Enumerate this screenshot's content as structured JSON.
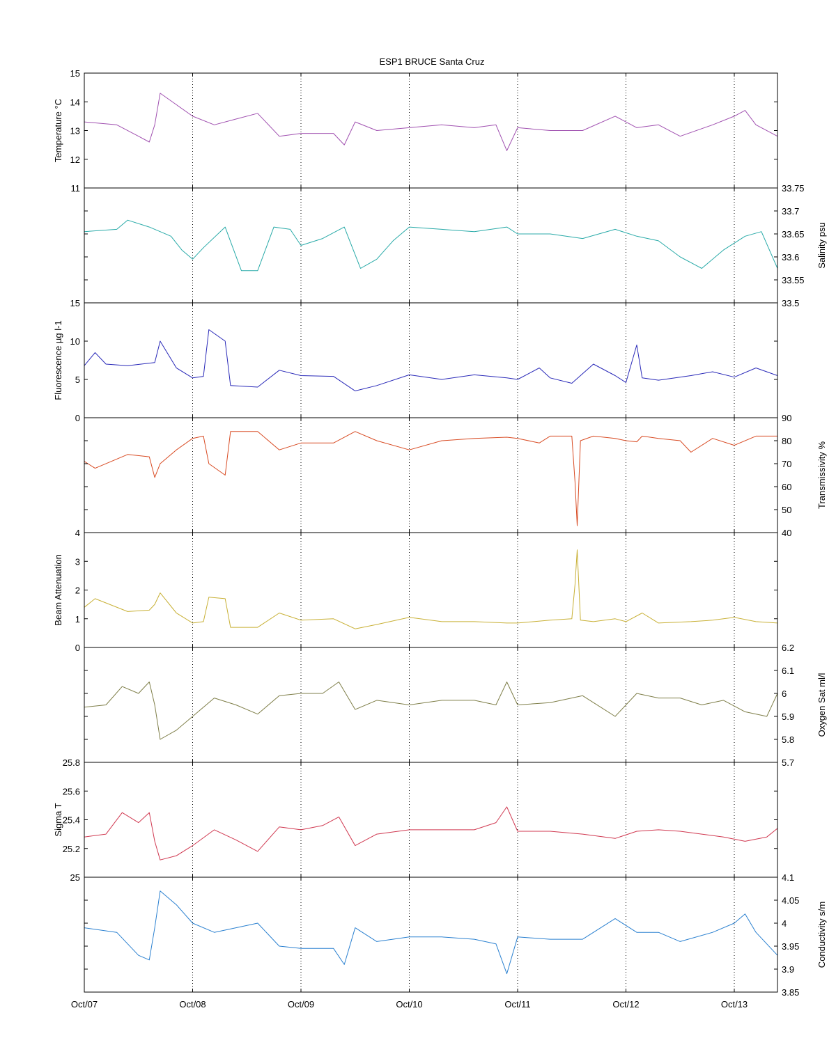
{
  "chart_data": {
    "type": "line",
    "title": "ESP1 BRUCE Santa Cruz",
    "x_tick_labels": [
      "Oct/07",
      "Oct/08",
      "Oct/09",
      "Oct/10",
      "Oct/11",
      "Oct/12",
      "Oct/13"
    ],
    "xlim_days": [
      7,
      13.4
    ],
    "grid": "vertical dotted lines at daily ticks",
    "panels": [
      {
        "name": "temperature",
        "ylabel": "Temperature °C",
        "side": "left",
        "color": "#a050b0",
        "ylim": [
          11,
          15
        ],
        "y_ticks": [
          "11",
          "12",
          "13",
          "14",
          "15"
        ],
        "series": {
          "x": [
            7.0,
            7.3,
            7.5,
            7.6,
            7.65,
            7.7,
            7.85,
            8.0,
            8.2,
            8.4,
            8.6,
            8.8,
            9.0,
            9.3,
            9.4,
            9.5,
            9.7,
            10.0,
            10.3,
            10.6,
            10.8,
            10.9,
            11.0,
            11.3,
            11.6,
            11.9,
            12.1,
            12.3,
            12.5,
            12.8,
            13.0,
            13.1,
            13.2,
            13.4
          ],
          "y": [
            13.3,
            13.2,
            12.8,
            12.6,
            13.2,
            14.3,
            13.9,
            13.5,
            13.2,
            13.4,
            13.6,
            12.8,
            12.9,
            12.9,
            12.5,
            13.3,
            13.0,
            13.1,
            13.2,
            13.1,
            13.2,
            12.3,
            13.1,
            13.0,
            13.0,
            13.5,
            13.1,
            13.2,
            12.8,
            13.2,
            13.5,
            13.7,
            13.2,
            12.8
          ]
        }
      },
      {
        "name": "salinity",
        "ylabel": "Salinity psu",
        "side": "right",
        "color": "#28aaa8",
        "ylim": [
          33.5,
          33.75
        ],
        "y_ticks": [
          "33.5",
          "33.55",
          "33.6",
          "33.65",
          "33.7",
          "33.75"
        ],
        "series": {
          "x": [
            7.0,
            7.3,
            7.4,
            7.6,
            7.8,
            7.9,
            8.0,
            8.1,
            8.3,
            8.45,
            8.6,
            8.75,
            8.9,
            9.0,
            9.2,
            9.4,
            9.55,
            9.7,
            9.85,
            10.0,
            10.3,
            10.6,
            10.9,
            11.0,
            11.3,
            11.6,
            11.9,
            12.1,
            12.3,
            12.5,
            12.7,
            12.9,
            13.1,
            13.25,
            13.4
          ],
          "y": [
            33.655,
            33.66,
            33.68,
            33.665,
            33.645,
            33.615,
            33.595,
            33.62,
            33.665,
            33.57,
            33.57,
            33.665,
            33.66,
            33.625,
            33.64,
            33.665,
            33.575,
            33.595,
            33.635,
            33.665,
            33.66,
            33.655,
            33.665,
            33.65,
            33.65,
            33.64,
            33.66,
            33.645,
            33.635,
            33.6,
            33.575,
            33.615,
            33.645,
            33.655,
            33.575
          ]
        }
      },
      {
        "name": "fluorescence",
        "ylabel": "Fluorescence µg l-1",
        "side": "left",
        "color": "#2828b8",
        "ylim": [
          0,
          15
        ],
        "y_ticks": [
          "0",
          "5",
          "10",
          "15"
        ],
        "series": {
          "x": [
            7.0,
            7.1,
            7.2,
            7.4,
            7.65,
            7.7,
            7.85,
            8.0,
            8.1,
            8.15,
            8.3,
            8.35,
            8.6,
            8.8,
            9.0,
            9.3,
            9.5,
            9.7,
            10.0,
            10.3,
            10.6,
            10.9,
            11.0,
            11.2,
            11.3,
            11.5,
            11.7,
            11.9,
            12.0,
            12.1,
            12.15,
            12.3,
            12.6,
            12.8,
            13.0,
            13.2,
            13.4
          ],
          "y": [
            6.8,
            8.5,
            7.0,
            6.8,
            7.2,
            10.0,
            6.5,
            5.2,
            5.4,
            11.5,
            10.0,
            4.2,
            4.0,
            6.2,
            5.5,
            5.4,
            3.5,
            4.2,
            5.6,
            5.0,
            5.6,
            5.2,
            5.0,
            6.5,
            5.2,
            4.5,
            7.0,
            5.5,
            4.6,
            9.5,
            5.2,
            4.9,
            5.5,
            6.0,
            5.3,
            6.5,
            5.5
          ]
        }
      },
      {
        "name": "transmissivity",
        "ylabel": "Transmissivity %",
        "side": "right",
        "color": "#d84a22",
        "ylim": [
          40,
          90
        ],
        "y_ticks": [
          "40",
          "50",
          "60",
          "70",
          "80",
          "90"
        ],
        "series": {
          "x": [
            7.0,
            7.1,
            7.4,
            7.6,
            7.65,
            7.7,
            7.85,
            8.0,
            8.1,
            8.15,
            8.3,
            8.35,
            8.6,
            8.8,
            9.0,
            9.3,
            9.5,
            9.7,
            10.0,
            10.3,
            10.6,
            10.9,
            11.0,
            11.2,
            11.3,
            11.5,
            11.53,
            11.55,
            11.58,
            11.7,
            11.9,
            12.0,
            12.1,
            12.15,
            12.3,
            12.5,
            12.6,
            12.8,
            13.0,
            13.2,
            13.4
          ],
          "y": [
            71.0,
            68.0,
            74.0,
            73.0,
            64.0,
            70.0,
            76.0,
            81.0,
            82.0,
            70.0,
            65.0,
            84.0,
            84.0,
            76.0,
            79.0,
            79.0,
            84.0,
            80.0,
            76.0,
            80.0,
            81.0,
            81.5,
            81.0,
            79.0,
            82.0,
            82.0,
            62.0,
            43.0,
            80.0,
            82.0,
            81.0,
            80.0,
            79.5,
            82.0,
            81.0,
            80.0,
            75.0,
            81.0,
            78.0,
            82.0,
            82.0
          ]
        }
      },
      {
        "name": "beam-attenuation",
        "ylabel": "Beam Attenuation",
        "side": "left",
        "color": "#c8b035",
        "ylim": [
          0,
          4
        ],
        "y_ticks": [
          "0",
          "1",
          "2",
          "3",
          "4"
        ],
        "series": {
          "x": [
            7.0,
            7.1,
            7.4,
            7.6,
            7.65,
            7.7,
            7.85,
            8.0,
            8.1,
            8.15,
            8.3,
            8.35,
            8.6,
            8.8,
            9.0,
            9.3,
            9.5,
            9.7,
            10.0,
            10.3,
            10.6,
            10.9,
            11.0,
            11.3,
            11.5,
            11.53,
            11.55,
            11.58,
            11.7,
            11.9,
            12.0,
            12.15,
            12.3,
            12.6,
            12.8,
            13.0,
            13.2,
            13.4
          ],
          "y": [
            1.4,
            1.7,
            1.25,
            1.3,
            1.5,
            1.9,
            1.2,
            0.85,
            0.9,
            1.75,
            1.7,
            0.7,
            0.7,
            1.2,
            0.95,
            1.0,
            0.65,
            0.8,
            1.05,
            0.9,
            0.9,
            0.85,
            0.85,
            0.95,
            1.0,
            2.2,
            3.4,
            0.95,
            0.9,
            1.0,
            0.9,
            1.2,
            0.85,
            0.9,
            0.95,
            1.05,
            0.9,
            0.85
          ]
        }
      },
      {
        "name": "oxygen-sat",
        "ylabel": "Oxygen Sat ml/l",
        "side": "right",
        "color": "#7e7e48",
        "ylim": [
          5.7,
          6.2
        ],
        "y_ticks": [
          "5.7",
          "5.8",
          "5.9",
          "6",
          "6.1",
          "6.2"
        ],
        "series": {
          "x": [
            7.0,
            7.2,
            7.35,
            7.5,
            7.6,
            7.65,
            7.7,
            7.85,
            8.0,
            8.2,
            8.4,
            8.6,
            8.8,
            9.0,
            9.2,
            9.35,
            9.5,
            9.7,
            10.0,
            10.3,
            10.6,
            10.8,
            10.9,
            11.0,
            11.3,
            11.6,
            11.9,
            12.1,
            12.3,
            12.5,
            12.7,
            12.9,
            13.1,
            13.3,
            13.4
          ],
          "y": [
            5.94,
            5.95,
            6.03,
            6.0,
            6.05,
            5.95,
            5.8,
            5.84,
            5.9,
            5.98,
            5.95,
            5.91,
            5.99,
            6.0,
            6.0,
            6.05,
            5.93,
            5.97,
            5.95,
            5.97,
            5.97,
            5.95,
            6.05,
            5.95,
            5.96,
            5.99,
            5.9,
            6.0,
            5.98,
            5.98,
            5.95,
            5.97,
            5.92,
            5.9,
            6.0
          ]
        }
      },
      {
        "name": "sigma-t",
        "ylabel": "Sigma T",
        "side": "left",
        "color": "#d03850",
        "ylim": [
          25,
          25.8
        ],
        "y_ticks": [
          "25",
          "25.2",
          "25.4",
          "25.6",
          "25.8"
        ],
        "series": {
          "x": [
            7.0,
            7.2,
            7.35,
            7.5,
            7.6,
            7.65,
            7.7,
            7.85,
            8.0,
            8.2,
            8.4,
            8.6,
            8.8,
            9.0,
            9.2,
            9.35,
            9.5,
            9.7,
            10.0,
            10.3,
            10.6,
            10.8,
            10.9,
            11.0,
            11.3,
            11.6,
            11.9,
            12.1,
            12.3,
            12.5,
            12.7,
            12.9,
            13.1,
            13.3,
            13.4
          ],
          "y": [
            25.28,
            25.3,
            25.45,
            25.38,
            25.45,
            25.25,
            25.12,
            25.15,
            25.22,
            25.33,
            25.26,
            25.18,
            25.35,
            25.33,
            25.36,
            25.42,
            25.22,
            25.3,
            25.33,
            25.33,
            25.33,
            25.38,
            25.49,
            25.32,
            25.32,
            25.3,
            25.27,
            25.32,
            25.33,
            25.32,
            25.3,
            25.28,
            25.25,
            25.28,
            25.34
          ]
        }
      },
      {
        "name": "conductivity",
        "ylabel": "Conductivity s/m",
        "side": "right",
        "color": "#2a80d0",
        "ylim": [
          3.85,
          4.1
        ],
        "y_ticks": [
          "3.85",
          "3.9",
          "3.95",
          "4",
          "4.05",
          "4.1"
        ],
        "series": {
          "x": [
            7.0,
            7.3,
            7.5,
            7.6,
            7.65,
            7.7,
            7.85,
            8.0,
            8.2,
            8.4,
            8.6,
            8.8,
            9.0,
            9.3,
            9.4,
            9.5,
            9.7,
            10.0,
            10.3,
            10.6,
            10.8,
            10.9,
            11.0,
            11.3,
            11.6,
            11.9,
            12.1,
            12.3,
            12.5,
            12.8,
            13.0,
            13.1,
            13.2,
            13.4
          ],
          "y": [
            3.99,
            3.98,
            3.93,
            3.92,
            3.99,
            4.07,
            4.04,
            4.0,
            3.98,
            3.99,
            4.0,
            3.95,
            3.945,
            3.945,
            3.91,
            3.99,
            3.96,
            3.97,
            3.97,
            3.965,
            3.955,
            3.89,
            3.97,
            3.965,
            3.965,
            4.01,
            3.98,
            3.98,
            3.96,
            3.98,
            4.0,
            4.02,
            3.98,
            3.93
          ]
        }
      }
    ]
  }
}
